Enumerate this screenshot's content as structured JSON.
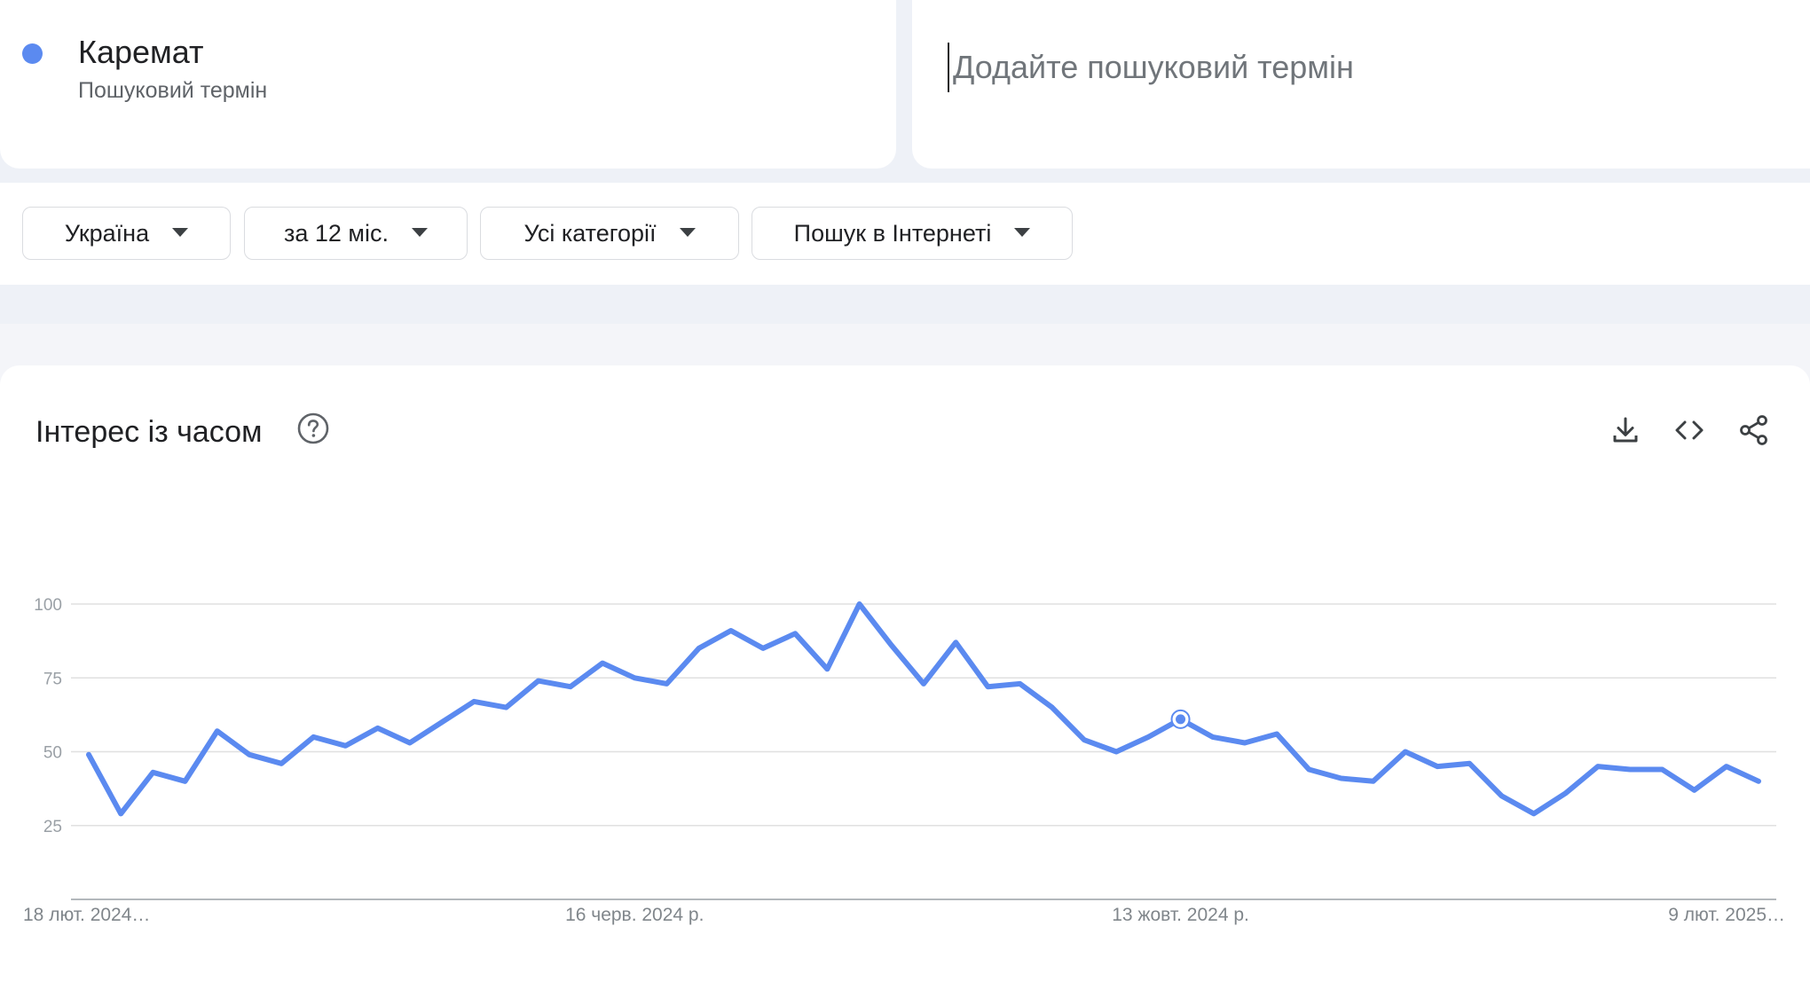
{
  "term": {
    "name": "Карeмат",
    "subtitle": "Пошуковий термін",
    "color": "#5b8af0"
  },
  "add_term": {
    "placeholder": "Додайте пошуковий термін"
  },
  "filters": [
    {
      "label": "Україна"
    },
    {
      "label": "за 12 міс."
    },
    {
      "label": "Усі категорії"
    },
    {
      "label": "Пошук в Інтернеті"
    }
  ],
  "chart_section": {
    "title": "Інтерес із часом",
    "icons": [
      "help-icon",
      "download-icon",
      "embed-code-icon",
      "share-icon"
    ]
  },
  "chart_data": {
    "type": "line",
    "xlabel": "",
    "ylabel": "",
    "ylim": [
      0,
      100
    ],
    "yticks": [
      25,
      50,
      75,
      100
    ],
    "grid": true,
    "x_tick_labels": [
      "18 лют. 2024…",
      "16 черв. 2024 р.",
      "13 жовт. 2024 р.",
      "9 лют. 2025…"
    ],
    "x_tick_index": [
      0,
      17,
      34,
      51
    ],
    "highlight_index": 34,
    "series": [
      {
        "color": "#5b8af0",
        "values": [
          49,
          29,
          43,
          40,
          57,
          49,
          46,
          55,
          52,
          58,
          53,
          60,
          67,
          65,
          74,
          72,
          80,
          75,
          73,
          85,
          91,
          85,
          90,
          78,
          100,
          86,
          73,
          87,
          72,
          73,
          65,
          54,
          50,
          55,
          61,
          55,
          53,
          56,
          44,
          41,
          40,
          50,
          45,
          46,
          35,
          29,
          36,
          45,
          44,
          44,
          37,
          45,
          40
        ]
      }
    ]
  }
}
